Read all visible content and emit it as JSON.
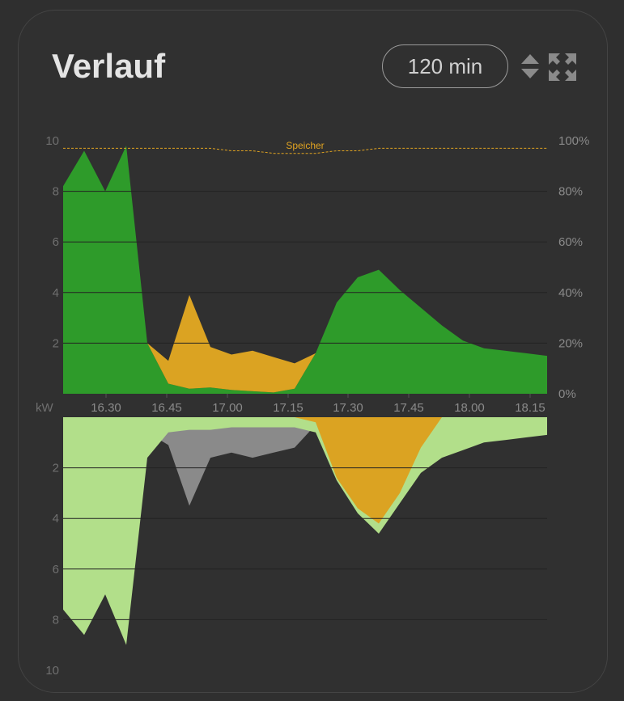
{
  "header": {
    "title": "Verlauf",
    "range_label": "120 min"
  },
  "icons": {
    "sort": "sort-updown-icon",
    "expand": "expand-arrows-icon"
  },
  "colors": {
    "card_bg": "#303030",
    "pv": "#2e9b2a",
    "battery": "#dba322",
    "grid": "#8a8a8a",
    "consumption": "#b2df8a",
    "soc_line": "#e0a321"
  },
  "chart_data": [
    {
      "type": "area",
      "ylim": [
        0,
        10
      ],
      "ylabel": "kW",
      "y2lim": [
        0,
        100
      ],
      "y_ticks": [
        "10",
        "8",
        "6",
        "4",
        "2"
      ],
      "y2_ticks": [
        "100%",
        "80%",
        "60%",
        "40%",
        "20%",
        "0%"
      ],
      "x_ticks": [
        "16.30",
        "16.45",
        "17.00",
        "17.15",
        "17.30",
        "17.45",
        "18.00",
        "18.15"
      ],
      "soc_label": "Speicher",
      "x": [
        0,
        5,
        10,
        15,
        20,
        25,
        30,
        35,
        40,
        45,
        50,
        55,
        60,
        65,
        70,
        75,
        80,
        85,
        90,
        95,
        100,
        105,
        110,
        115
      ],
      "series": [
        {
          "values": [
            8.2,
            9.6,
            8.0,
            9.8,
            2.0,
            0.4,
            0.2,
            0.25,
            0.15,
            0.1,
            0.05,
            0.2,
            1.6,
            3.6,
            4.6,
            4.9,
            4.1,
            3.4,
            2.7,
            2.1,
            1.8,
            1.7,
            1.6,
            1.5
          ]
        },
        {
          "values": [
            0,
            0,
            0,
            0,
            0,
            0.9,
            3.7,
            1.6,
            1.4,
            1.6,
            1.4,
            1.0,
            0,
            0,
            0,
            0,
            0,
            0,
            0,
            0,
            0,
            0,
            0,
            0
          ]
        },
        {
          "values": [
            97,
            97,
            97,
            97,
            97,
            97,
            97,
            97,
            96,
            96,
            95,
            95,
            95,
            96,
            96,
            97,
            97,
            97,
            97,
            97,
            97,
            97,
            97,
            97
          ]
        }
      ]
    },
    {
      "type": "area",
      "ylim": [
        0,
        10
      ],
      "inverted": true,
      "y_ticks": [
        "2",
        "4",
        "6",
        "8",
        "10"
      ],
      "x": [
        0,
        5,
        10,
        15,
        20,
        25,
        30,
        35,
        40,
        45,
        50,
        55,
        60,
        65,
        70,
        75,
        80,
        85,
        90,
        95,
        100,
        105,
        110,
        115
      ],
      "series": [
        {
          "values": [
            7.6,
            8.6,
            7.0,
            9.0,
            1.6,
            0.6,
            0.5,
            0.5,
            0.4,
            0.4,
            0.4,
            0.4,
            0.6,
            2.5,
            3.8,
            4.6,
            3.4,
            2.2,
            1.6,
            1.3,
            1.0,
            0.9,
            0.8,
            0.7
          ]
        },
        {
          "values": [
            0,
            0,
            0,
            0,
            0,
            0,
            0,
            0,
            0,
            0,
            0,
            0,
            0.2,
            2.4,
            3.6,
            4.2,
            3.0,
            1.2,
            0,
            0,
            0,
            0,
            0,
            0
          ]
        },
        {
          "values": [
            0.3,
            0.3,
            0.3,
            0.3,
            0.6,
            1.1,
            3.5,
            1.6,
            1.4,
            1.6,
            1.4,
            1.2,
            0.3,
            0.2,
            0.2,
            0.2,
            0.2,
            0.2,
            0.2,
            0.2,
            0.2,
            0.2,
            0.2,
            0.2
          ]
        }
      ]
    }
  ]
}
